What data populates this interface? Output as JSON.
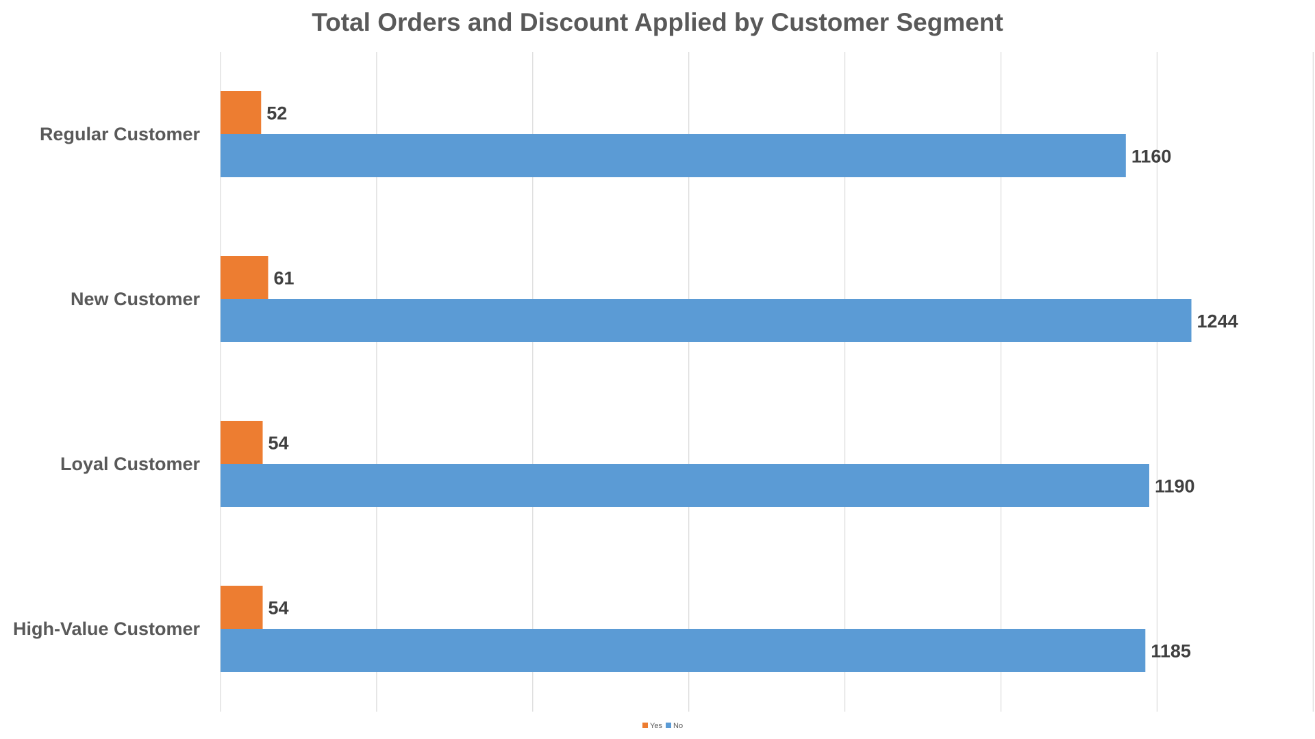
{
  "chart_data": {
    "type": "bar",
    "orientation": "horizontal",
    "title": "Total Orders and Discount Applied by Customer Segment",
    "xlabel": "",
    "ylabel": "",
    "categories": [
      "Regular Customer",
      "New Customer",
      "Loyal Customer",
      "High-Value Customer"
    ],
    "series": [
      {
        "name": "Yes",
        "color": "#ED7D31",
        "values": [
          52,
          61,
          54,
          54
        ]
      },
      {
        "name": "No",
        "color": "#5B9BD5",
        "values": [
          1160,
          1244,
          1190,
          1185
        ]
      }
    ],
    "xlim": [
      0,
      1400
    ],
    "gridlines": true,
    "legend": "bottom-center",
    "data_labels": true
  }
}
